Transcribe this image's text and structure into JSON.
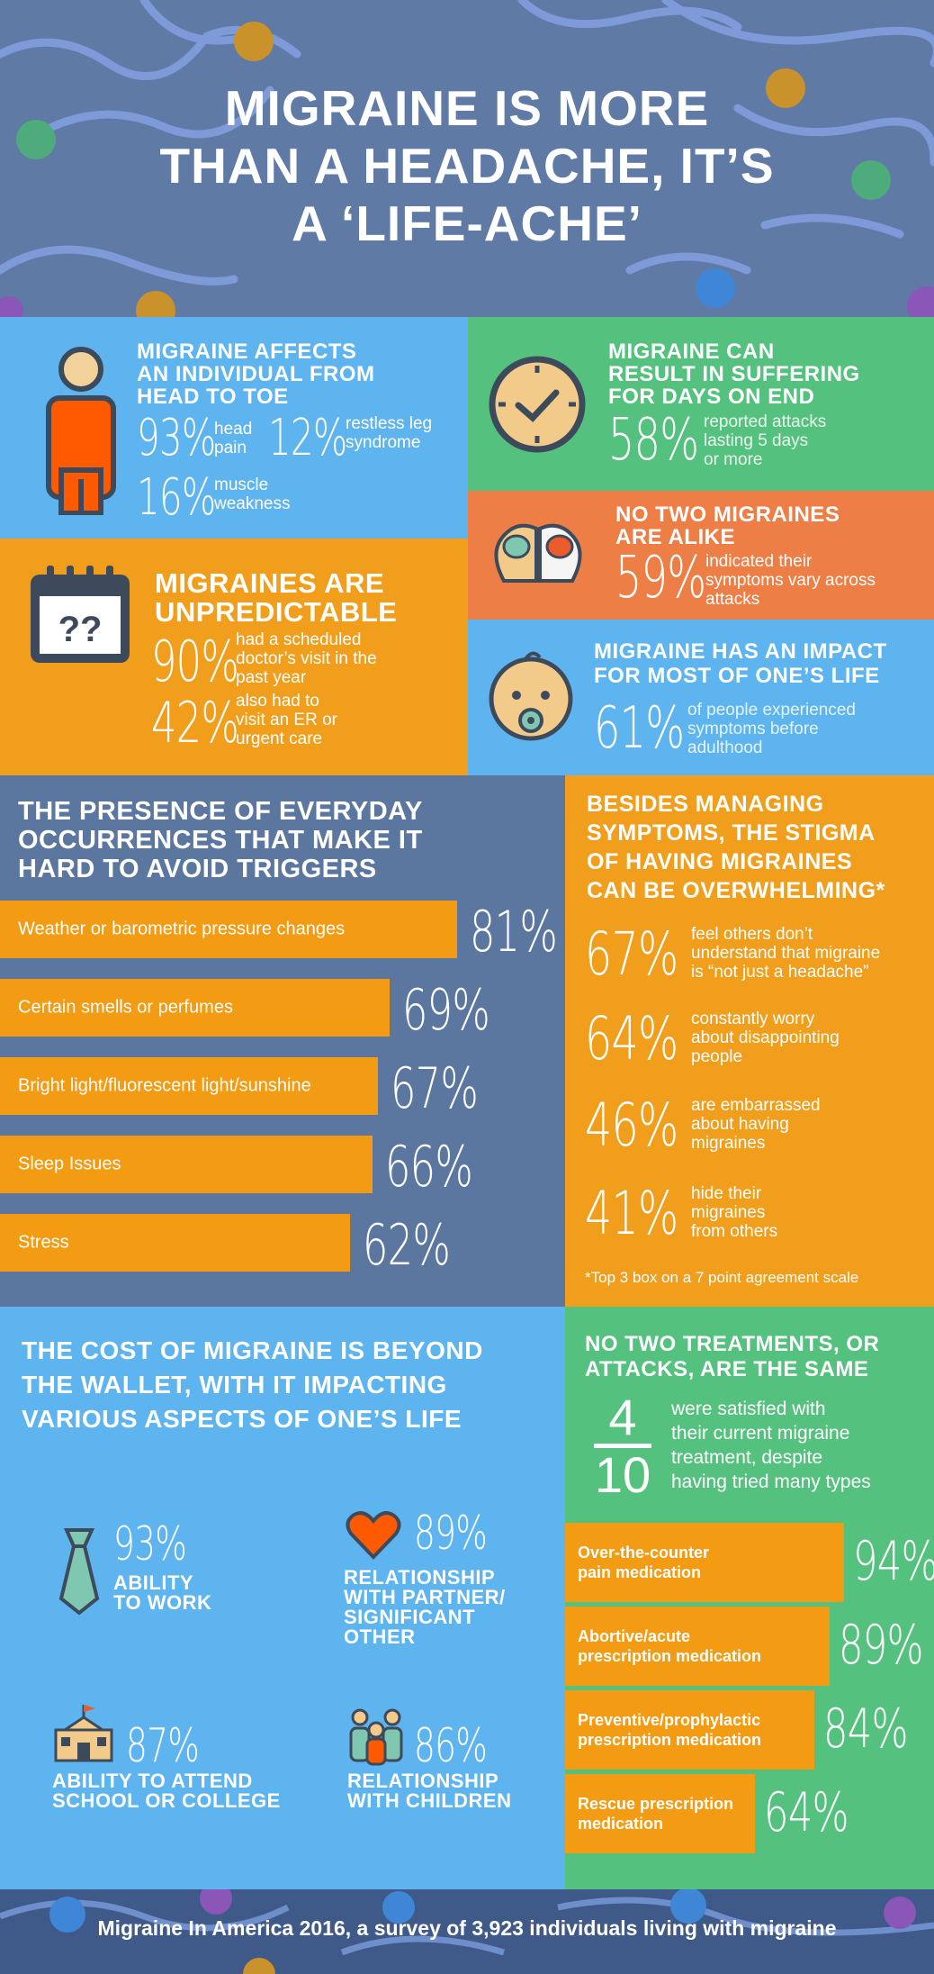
{
  "header": {
    "title_lines": [
      "MIGRAINE IS MORE",
      "THAN A HEADACHE, IT’S",
      "A ‘LIFE-ACHE’"
    ]
  },
  "head_to_toe": {
    "heading": [
      "MIGRAINE AFFECTS",
      "AN INDIVIDUAL FROM",
      "HEAD TO TOE"
    ],
    "stats": [
      {
        "pct": "93%",
        "label": [
          "head",
          "pain"
        ]
      },
      {
        "pct": "12%",
        "label": [
          "restless leg",
          "syndrome"
        ]
      },
      {
        "pct": "16%",
        "label": [
          "muscle",
          "weakness"
        ]
      }
    ]
  },
  "days": {
    "heading": [
      "MIGRAINE CAN",
      "RESULT IN SUFFERING",
      "FOR DAYS ON END"
    ],
    "pct": "58%",
    "label": [
      "reported attacks",
      "lasting 5 days",
      "or more"
    ]
  },
  "alike": {
    "heading": [
      "NO TWO MIGRAINES",
      "ARE ALIKE"
    ],
    "pct": "59%",
    "label": [
      "indicated their",
      "symptoms vary across",
      "attacks"
    ]
  },
  "unpredictable": {
    "heading": [
      "MIGRAINES ARE",
      "UNPREDICTABLE"
    ],
    "calendar_text": "??",
    "stats": [
      {
        "pct": "90%",
        "label": [
          "had a scheduled",
          "doctor’s visit in the",
          "past year"
        ]
      },
      {
        "pct": "42%",
        "label": [
          "also had to",
          "visit an ER or",
          "urgent care"
        ]
      }
    ]
  },
  "lifetime": {
    "heading": [
      "MIGRAINE HAS AN IMPACT",
      "FOR MOST OF ONE’S LIFE"
    ],
    "pct": "61%",
    "label": [
      "of people experienced",
      "symptoms before",
      "adulthood"
    ]
  },
  "triggers": {
    "heading": [
      "THE PRESENCE OF EVERYDAY",
      "OCCURRENCES THAT MAKE IT",
      "HARD TO AVOID TRIGGERS"
    ],
    "items": [
      {
        "label": "Weather or barometric pressure changes",
        "pct": "81%",
        "value": 81
      },
      {
        "label": "Certain smells or perfumes",
        "pct": "69%",
        "value": 69
      },
      {
        "label": "Bright light/fluorescent light/sunshine",
        "pct": "67%",
        "value": 67
      },
      {
        "label": "Sleep Issues",
        "pct": "66%",
        "value": 66
      },
      {
        "label": "Stress",
        "pct": "62%",
        "value": 62
      }
    ]
  },
  "stigma": {
    "heading": [
      "BESIDES MANAGING",
      "SYMPTOMS, THE STIGMA",
      "OF HAVING MIGRAINES",
      "CAN BE OVERWHELMING*"
    ],
    "items": [
      {
        "pct": "67%",
        "label": [
          "feel others don’t",
          "understand that migraine",
          "is “not just a headache”"
        ]
      },
      {
        "pct": "64%",
        "label": [
          "constantly worry",
          "about disappointing",
          "people"
        ]
      },
      {
        "pct": "46%",
        "label": [
          "are embarrassed",
          "about having",
          "migraines"
        ]
      },
      {
        "pct": "41%",
        "label": [
          "hide their",
          "migraines",
          "from others"
        ]
      }
    ],
    "footnote": "*Top 3 box on a 7 point agreement scale"
  },
  "cost": {
    "heading": [
      "THE COST OF MIGRAINE IS BEYOND",
      "THE WALLET, WITH IT IMPACTING",
      "VARIOUS ASPECTS OF ONE’S LIFE"
    ],
    "items": [
      {
        "pct": "93%",
        "label": [
          "ABILITY",
          "TO WORK"
        ],
        "icon": "tie-icon"
      },
      {
        "pct": "89%",
        "label": [
          "RELATIONSHIP",
          "WITH PARTNER/",
          "SIGNIFICANT",
          "OTHER"
        ],
        "icon": "heart-icon"
      },
      {
        "pct": "87%",
        "label": [
          "ABILITY TO ATTEND",
          "SCHOOL OR COLLEGE"
        ],
        "icon": "school-icon"
      },
      {
        "pct": "86%",
        "label": [
          "RELATIONSHIP",
          "WITH CHILDREN"
        ],
        "icon": "family-icon"
      }
    ]
  },
  "treatments": {
    "heading": [
      "NO TWO TREATMENTS, OR",
      "ATTACKS, ARE THE SAME"
    ],
    "fraction": {
      "numerator": "4",
      "denominator": "10"
    },
    "fraction_label": [
      "were satisfied with",
      "their current migraine",
      "treatment, despite",
      "having tried many types"
    ],
    "items": [
      {
        "label": [
          "Over-the-counter",
          "pain medication"
        ],
        "pct": "94%",
        "value": 94
      },
      {
        "label": [
          "Abortive/acute",
          "prescription medication"
        ],
        "pct": "89%",
        "value": 89
      },
      {
        "label": [
          "Preventive/prophylactic",
          "prescription medication"
        ],
        "pct": "84%",
        "value": 84
      },
      {
        "label": [
          "Rescue prescription",
          "medication"
        ],
        "pct": "64%",
        "value": 64
      }
    ]
  },
  "footer": {
    "text": "Migraine In America 2016, a survey of 3,923 individuals living with migraine"
  },
  "colors": {
    "header": "#5f7aa5",
    "blue": "#5eb4ee",
    "green": "#55c17e",
    "orange": "#f09e1c",
    "coral": "#ec7e46",
    "slate": "#5b77a0",
    "bar": "#f39b12"
  }
}
